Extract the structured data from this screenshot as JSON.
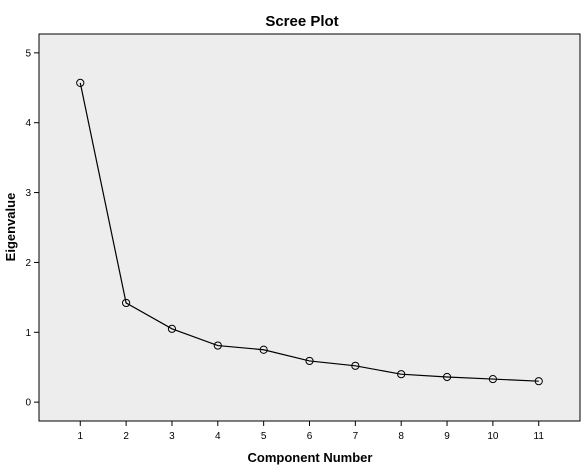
{
  "chart_data": {
    "type": "line",
    "title": "Scree Plot",
    "xlabel": "Component Number",
    "ylabel": "Eigenvalue",
    "x": [
      1,
      2,
      3,
      4,
      5,
      6,
      7,
      8,
      9,
      10,
      11
    ],
    "series": [
      {
        "values": [
          4.57,
          1.42,
          1.05,
          0.81,
          0.75,
          0.59,
          0.52,
          0.4,
          0.36,
          0.33,
          0.3
        ]
      }
    ],
    "xlim": [
      0.1,
      11.9
    ],
    "ylim": [
      -0.27,
      5.27
    ],
    "yticks": [
      0,
      1,
      2,
      3,
      4,
      5
    ],
    "xticks": [
      1,
      2,
      3,
      4,
      5,
      6,
      7,
      8,
      9,
      10,
      11
    ],
    "grid": false,
    "plot_background": "#ededed",
    "line_color": "#000000",
    "marker": "open-circle"
  }
}
